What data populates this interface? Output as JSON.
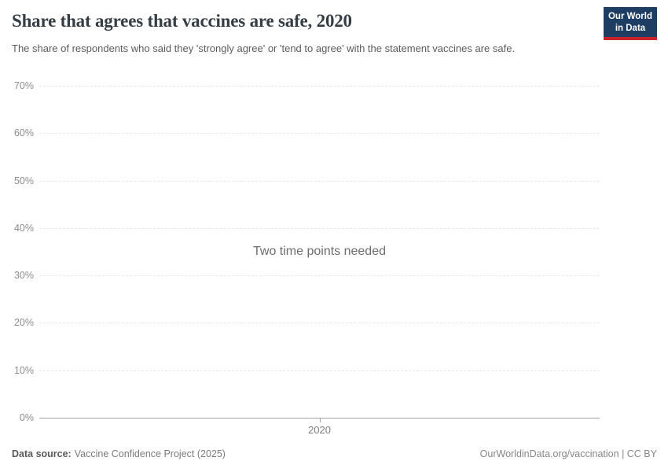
{
  "header": {
    "title": "Share that agrees that vaccines are safe, 2020",
    "subtitle": "The share of respondents who said they 'strongly agree' or 'tend to agree' with the statement vaccines are safe.",
    "logo": {
      "line1": "Our World",
      "line2": "in Data"
    }
  },
  "chart_data": {
    "type": "line",
    "title": "Share that agrees that vaccines are safe, 2020",
    "series": [],
    "empty_message": "Two time points needed",
    "xlabel": "",
    "ylabel": "",
    "ylim": [
      0,
      70
    ],
    "yticks": [
      {
        "value": 0,
        "label": "0%"
      },
      {
        "value": 10,
        "label": "10%"
      },
      {
        "value": 20,
        "label": "20%"
      },
      {
        "value": 30,
        "label": "30%"
      },
      {
        "value": 40,
        "label": "40%"
      },
      {
        "value": 50,
        "label": "50%"
      },
      {
        "value": 60,
        "label": "60%"
      },
      {
        "value": 70,
        "label": "70%"
      }
    ],
    "xticks": [
      {
        "label": "2020",
        "position": 0.5
      }
    ],
    "grid": "horizontal-dashed",
    "legend": "none"
  },
  "footer": {
    "data_source_label": "Data source:",
    "data_source_value": "Vaccine Confidence Project (2025)",
    "attribution": "OurWorldinData.org/vaccination | CC BY"
  },
  "colors": {
    "logo_bg": "#1d3d63",
    "logo_accent": "#c8232d",
    "grid": "#e8e8e8",
    "axis": "#a5a5a5",
    "title_text": "#353d45",
    "subtitle_text": "#5c5c5c"
  }
}
